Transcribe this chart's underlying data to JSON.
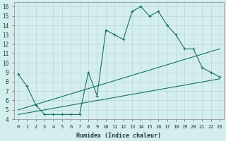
{
  "xlabel": "Humidex (Indice chaleur)",
  "bg_color": "#d4eeee",
  "line_color": "#1a7060",
  "grid_color": "#b8d8d8",
  "xlim": [
    -0.5,
    23.5
  ],
  "ylim": [
    4,
    16.5
  ],
  "xtick_labels": [
    "0",
    "1",
    "2",
    "3",
    "4",
    "5",
    "6",
    "7",
    "8",
    "9",
    "10",
    "11",
    "12",
    "13",
    "14",
    "15",
    "16",
    "17",
    "18",
    "19",
    "20",
    "21",
    "22",
    "23"
  ],
  "xticks": [
    0,
    1,
    2,
    3,
    4,
    5,
    6,
    7,
    8,
    9,
    10,
    11,
    12,
    13,
    14,
    15,
    16,
    17,
    18,
    19,
    20,
    21,
    22,
    23
  ],
  "yticks": [
    4,
    5,
    6,
    7,
    8,
    9,
    10,
    11,
    12,
    13,
    14,
    15,
    16
  ],
  "line1_x": [
    0,
    1,
    2,
    3,
    4,
    5,
    6,
    7,
    8,
    9,
    10,
    11,
    12,
    13,
    14,
    15,
    16,
    17,
    18,
    19,
    20,
    21,
    22,
    23
  ],
  "line1_y": [
    8.8,
    7.5,
    5.5,
    4.5,
    4.5,
    4.5,
    4.5,
    4.5,
    9.0,
    6.5,
    13.5,
    13.0,
    12.5,
    15.5,
    16.0,
    15.0,
    15.5,
    14.0,
    13.0,
    11.5,
    11.5,
    9.5,
    9.0,
    8.5
  ],
  "line2_x": [
    0,
    23
  ],
  "line2_y": [
    5.0,
    11.5
  ],
  "line3_x": [
    0,
    23
  ],
  "line3_y": [
    4.5,
    8.3
  ]
}
